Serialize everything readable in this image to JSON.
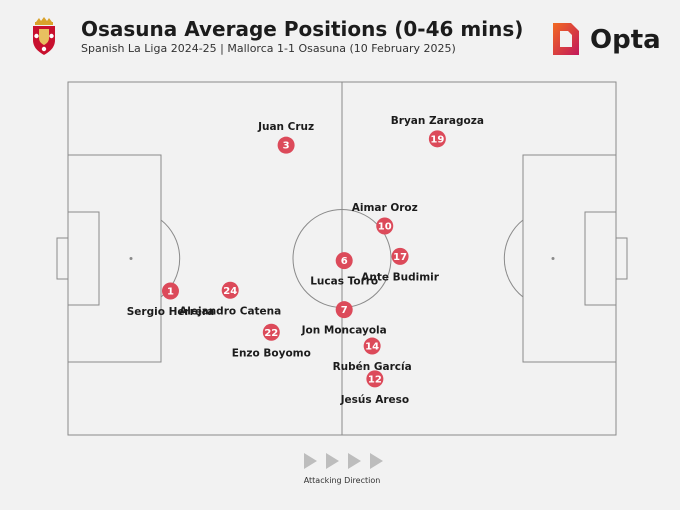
{
  "header": {
    "title": "Osasuna Average Positions (0-46 mins)",
    "subtitle": "Spanish La Liga 2024-25 | Mallorca 1-1 Osasuna (10 February 2025)",
    "brand": "Opta",
    "crest_icon": "osasuna-crest-icon",
    "brand_icon": "opta-logo-icon"
  },
  "colors": {
    "background": "#f2f2f2",
    "pitch_lines": "#8a8a8a",
    "marker": "#dc4a5a",
    "marker_text": "#ffffff",
    "label": "#1c1c1c",
    "arrow": "#bdbdbd",
    "brand_orange": "#f26a22",
    "brand_pink": "#c2185b"
  },
  "chart_data": {
    "type": "scatter",
    "title": "Osasuna Average Positions (0-46 mins)",
    "subtitle": "Spanish La Liga 2024-25 | Mallorca 1-1 Osasuna (10 February 2025)",
    "xlabel": "Attacking Direction",
    "ylabel": "",
    "xlim": [
      0,
      100
    ],
    "ylim": [
      0,
      100
    ],
    "grid": false,
    "attacking_direction": "left-to-right",
    "players": [
      {
        "number": "1",
        "name": "Sergio Herrera",
        "x": 18.7,
        "y": 59.2
      },
      {
        "number": "24",
        "name": "Alejandro Catena",
        "x": 29.6,
        "y": 59.0
      },
      {
        "number": "3",
        "name": "Juan Cruz",
        "x": 39.8,
        "y": 17.9
      },
      {
        "number": "22",
        "name": "Enzo Boyomo",
        "x": 37.1,
        "y": 70.9
      },
      {
        "number": "19",
        "name": "Bryan Zaragoza",
        "x": 67.4,
        "y": 16.1
      },
      {
        "number": "10",
        "name": "Aimar Oroz",
        "x": 57.8,
        "y": 40.8
      },
      {
        "number": "6",
        "name": "Lucas Torró",
        "x": 50.4,
        "y": 50.6
      },
      {
        "number": "17",
        "name": "Ante Budimir",
        "x": 60.6,
        "y": 49.4
      },
      {
        "number": "7",
        "name": "Jon Moncayola",
        "x": 50.4,
        "y": 64.5
      },
      {
        "number": "14",
        "name": "Rubén García",
        "x": 55.5,
        "y": 74.8
      },
      {
        "number": "12",
        "name": "Jesús Areso",
        "x": 56.0,
        "y": 84.1
      }
    ]
  },
  "footer": {
    "attacking_direction": "Attacking Direction"
  }
}
